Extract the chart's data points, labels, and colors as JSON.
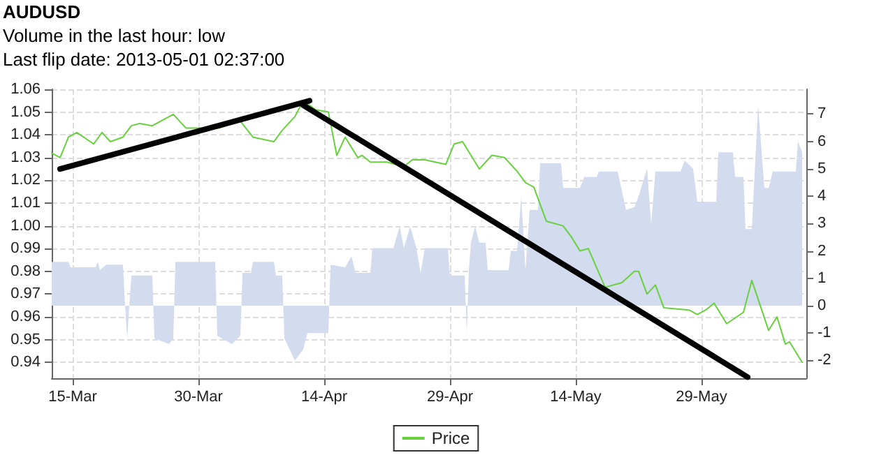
{
  "chart_data": {
    "type": "line",
    "title": "AUDUSD",
    "subtitle": "Volume in the last hour: low",
    "annotations": [
      "Last flip date: 2013-05-01 02:37:00"
    ],
    "xlim": [
      "2013-03-12T12:00",
      "2013-06-10T12:00"
    ],
    "xticks": [
      {
        "value": "2013-03-15",
        "label": "15-Mar"
      },
      {
        "value": "2013-03-30",
        "label": "30-Mar"
      },
      {
        "value": "2013-04-14",
        "label": "14-Apr"
      },
      {
        "value": "2013-04-29",
        "label": "29-Apr"
      },
      {
        "value": "2013-05-14",
        "label": "14-May"
      },
      {
        "value": "2013-05-29",
        "label": "29-May"
      }
    ],
    "ylim": [
      0.933,
      1.06
    ],
    "yticks": [
      {
        "value": 0.94,
        "label": "0.94"
      },
      {
        "value": 0.95,
        "label": "0.95"
      },
      {
        "value": 0.96,
        "label": "0.96"
      },
      {
        "value": 0.97,
        "label": "0.97"
      },
      {
        "value": 0.98,
        "label": "0.98"
      },
      {
        "value": 0.99,
        "label": "0.99"
      },
      {
        "value": 1.0,
        "label": "1.00"
      },
      {
        "value": 1.01,
        "label": "1.01"
      },
      {
        "value": 1.02,
        "label": "1.02"
      },
      {
        "value": 1.03,
        "label": "1.03"
      },
      {
        "value": 1.04,
        "label": "1.04"
      },
      {
        "value": 1.05,
        "label": "1.05"
      },
      {
        "value": 1.06,
        "label": "1.06"
      }
    ],
    "y2lim": [
      -2.65,
      7.9
    ],
    "y2ticks": [
      -2,
      -1,
      0,
      1,
      2,
      3,
      4,
      5,
      6,
      7
    ],
    "grid": true,
    "legend": "bottom",
    "series": [
      {
        "type": "area",
        "axis": "y2",
        "color": "#d3dcee",
        "x": [
          "2013-03-12T12:00",
          "2013-03-14T12:00",
          "2013-03-14T18:00",
          "2013-03-17T18:00",
          "2013-03-18",
          "2013-03-18T06:00",
          "2013-03-19",
          "2013-03-21",
          "2013-03-21T06:00",
          "2013-03-21T12:00",
          "2013-03-21T18:00",
          "2013-03-22",
          "2013-03-24T12:00",
          "2013-03-24T18:00",
          "2013-03-26T12:00",
          "2013-03-27",
          "2013-03-27T06:00",
          "2013-04-01",
          "2013-04-01T06:00",
          "2013-04-03",
          "2013-04-04",
          "2013-04-04T06:00",
          "2013-04-05T06:00",
          "2013-04-05T12:00",
          "2013-04-08",
          "2013-04-08T06:00",
          "2013-04-09",
          "2013-04-09T06:00",
          "2013-04-10T12:00",
          "2013-04-11T12:00",
          "2013-04-12",
          "2013-04-14T12:00",
          "2013-04-14T18:00",
          "2013-04-16T12:00",
          "2013-04-17T06:00",
          "2013-04-17T18:00",
          "2013-04-19T12:00",
          "2013-04-19T18:00",
          "2013-04-22T06:00",
          "2013-04-23",
          "2013-04-23T12:00",
          "2013-04-24T06:00",
          "2013-04-25",
          "2013-04-25T12:00",
          "2013-04-26",
          "2013-04-28T18:00",
          "2013-04-29",
          "2013-04-30T18:00",
          "2013-05-01",
          "2013-05-01T06:00",
          "2013-05-01T12:00",
          "2013-05-02",
          "2013-05-02T12:00",
          "2013-05-03T06:00",
          "2013-05-03T12:00",
          "2013-05-06",
          "2013-05-06T06:00",
          "2013-05-07",
          "2013-05-07T12:00",
          "2013-05-08",
          "2013-05-08T12:00",
          "2013-05-09T12:00",
          "2013-05-09T18:00",
          "2013-05-12T06:00",
          "2013-05-12T12:00",
          "2013-05-14T12:00",
          "2013-05-15",
          "2013-05-16T12:00",
          "2013-05-16T18:00",
          "2013-05-19",
          "2013-05-20",
          "2013-05-21",
          "2013-05-21T12:00",
          "2013-05-22T12:00",
          "2013-05-23",
          "2013-05-23T12:00",
          "2013-05-26T12:00",
          "2013-05-27",
          "2013-05-28",
          "2013-05-28T12:00",
          "2013-05-30T18:00",
          "2013-05-31",
          "2013-06-01T18:00",
          "2013-06-02",
          "2013-06-03",
          "2013-06-03T06:00",
          "2013-06-04",
          "2013-06-04T18:00",
          "2013-06-05T12:00",
          "2013-06-06",
          "2013-06-06T12:00",
          "2013-06-09T06:00",
          "2013-06-09T12:00",
          "2013-06-10"
        ],
        "values": [
          1.6,
          1.6,
          1.4,
          1.4,
          1.6,
          1.3,
          1.5,
          1.5,
          0,
          -1.2,
          0,
          1.1,
          1.1,
          -1.2,
          -1.4,
          -1.2,
          1.6,
          1.6,
          -1.1,
          -1.4,
          -1.1,
          1.2,
          1.2,
          1.6,
          1.6,
          1.1,
          1.1,
          -1.2,
          -2.0,
          -1.6,
          -1.0,
          -1.0,
          1.5,
          1.4,
          1.8,
          1.2,
          1.2,
          2.1,
          2.1,
          2.9,
          2.1,
          2.9,
          2.1,
          1.2,
          2.1,
          2.1,
          1.1,
          1.1,
          -1.0,
          1.3,
          2.3,
          2.9,
          2.3,
          2.3,
          1.3,
          1.3,
          2.0,
          2.0,
          4.0,
          1.3,
          3.5,
          3.5,
          5.2,
          5.2,
          4.3,
          4.3,
          4.7,
          4.7,
          4.9,
          4.9,
          3.5,
          3.6,
          4.0,
          5.0,
          3.0,
          4.9,
          4.9,
          5.3,
          5.0,
          3.8,
          3.8,
          5.6,
          5.6,
          4.7,
          4.7,
          2.8,
          2.8,
          7.3,
          4.3,
          4.3,
          4.9,
          4.9,
          6.0,
          5.6
        ]
      },
      {
        "name": "Price",
        "color": "#66d13d",
        "x": [
          "2013-03-12T12:00",
          "2013-03-13T12:00",
          "2013-03-14T12:00",
          "2013-03-15T12:00",
          "2013-03-17T12:00",
          "2013-03-18T12:00",
          "2013-03-19T12:00",
          "2013-03-21",
          "2013-03-22",
          "2013-03-23",
          "2013-03-24T12:00",
          "2013-03-27",
          "2013-03-28T12:00",
          "2013-03-30",
          "2013-04-01T12:00",
          "2013-04-04",
          "2013-04-05T12:00",
          "2013-04-08",
          "2013-04-09",
          "2013-04-10T12:00",
          "2013-04-11T12:00",
          "2013-04-13",
          "2013-04-14T12:00",
          "2013-04-15T12:00",
          "2013-04-16T12:00",
          "2013-04-18",
          "2013-04-18T12:00",
          "2013-04-19T12:00",
          "2013-04-21T12:00",
          "2013-04-23T12:00",
          "2013-04-24T12:00",
          "2013-04-26",
          "2013-04-28T12:00",
          "2013-04-29T12:00",
          "2013-04-30T12:00",
          "2013-05-02",
          "2013-05-02T12:00",
          "2013-05-04",
          "2013-05-05T12:00",
          "2013-05-07",
          "2013-05-08",
          "2013-05-09",
          "2013-05-10T12:00",
          "2013-05-12T12:00",
          "2013-05-13T12:00",
          "2013-05-14T12:00",
          "2013-05-15T12:00",
          "2013-05-17T12:00",
          "2013-05-19T12:00",
          "2013-05-21",
          "2013-05-21T12:00",
          "2013-05-22T12:00",
          "2013-05-23T12:00",
          "2013-05-24T12:00",
          "2013-05-27T12:00",
          "2013-05-28T12:00",
          "2013-05-29T12:00",
          "2013-05-30T12:00",
          "2013-06-01",
          "2013-06-03",
          "2013-06-04",
          "2013-06-05",
          "2013-06-06",
          "2013-06-07",
          "2013-06-08",
          "2013-06-08T12:00",
          "2013-06-10"
        ],
        "values": [
          1.032,
          1.03,
          1.039,
          1.041,
          1.036,
          1.041,
          1.037,
          1.039,
          1.044,
          1.045,
          1.044,
          1.049,
          1.043,
          1.043,
          1.043,
          1.046,
          1.039,
          1.037,
          1.042,
          1.048,
          1.055,
          1.051,
          1.05,
          1.031,
          1.039,
          1.03,
          1.031,
          1.028,
          1.028,
          1.026,
          1.029,
          1.029,
          1.027,
          1.036,
          1.037,
          1.028,
          1.025,
          1.031,
          1.03,
          1.024,
          1.019,
          1.017,
          1.002,
          1.0,
          0.995,
          0.989,
          0.99,
          0.973,
          0.975,
          0.98,
          0.98,
          0.97,
          0.974,
          0.964,
          0.963,
          0.961,
          0.963,
          0.966,
          0.957,
          0.962,
          0.976,
          0.965,
          0.954,
          0.96,
          0.948,
          0.949,
          0.94
        ]
      },
      {
        "color": "#000000",
        "x": [
          "2013-03-13T12:00",
          "2013-04-12T06:00"
        ],
        "values": [
          1.025,
          1.055
        ]
      },
      {
        "color": "#000000",
        "x": [
          "2013-04-11T12:00",
          "2013-06-03T12:00"
        ],
        "values": [
          1.053,
          0.9335
        ]
      }
    ]
  }
}
